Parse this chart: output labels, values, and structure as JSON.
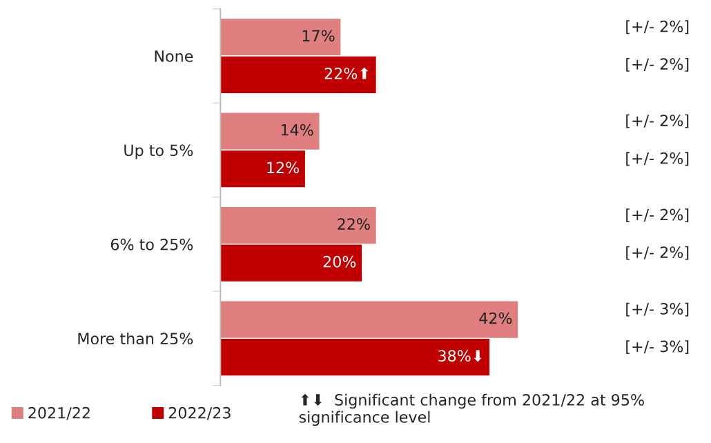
{
  "chart_data": {
    "type": "bar",
    "orientation": "horizontal",
    "categories": [
      "None",
      "Up to 5%",
      "6% to 25%",
      "More than 25%"
    ],
    "series": [
      {
        "name": "2021/22",
        "color": "#e07f7f",
        "values": [
          17,
          14,
          22,
          42
        ],
        "value_labels": [
          "17%",
          "14%",
          "22%",
          "42%"
        ]
      },
      {
        "name": "2022/23",
        "color": "#c00000",
        "values": [
          22,
          12,
          20,
          38
        ],
        "value_labels": [
          "22%⬆",
          "12%",
          "20%",
          "38%⬇"
        ]
      }
    ],
    "annotations": [
      "[+/- 2%]",
      "[+/- 2%]",
      "[+/- 2%]",
      "[+/- 2%]",
      "[+/- 2%]",
      "[+/- 2%]",
      "[+/- 3%]",
      "[+/- 3%]",
      "⬆⬇  Significant change from 2021/22 at 95% significance level"
    ],
    "legend": "bottom",
    "grid": false,
    "tick_labels": "y"
  }
}
